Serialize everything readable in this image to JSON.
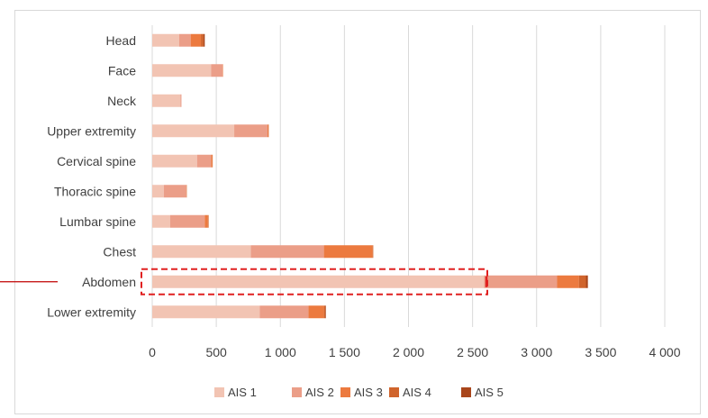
{
  "chart_data": {
    "type": "bar",
    "orientation": "horizontal",
    "stacked": true,
    "categories": [
      "Head",
      "Face",
      "Neck",
      "Upper extremity",
      "Cervical spine",
      "Thoracic spine",
      "Lumbar spine",
      "Chest",
      "Abdomen",
      "Lower extremity"
    ],
    "series": [
      {
        "name": "AIS 1",
        "color": "#f2c4b3",
        "values": [
          210,
          460,
          220,
          640,
          350,
          90,
          140,
          770,
          2590,
          840
        ]
      },
      {
        "name": "AIS 2",
        "color": "#eb9e88",
        "values": [
          90,
          90,
          8,
          260,
          110,
          175,
          270,
          570,
          570,
          380
        ]
      },
      {
        "name": "AIS 3",
        "color": "#ec7a3f",
        "values": [
          80,
          3,
          0,
          8,
          10,
          3,
          25,
          380,
          170,
          120
        ]
      },
      {
        "name": "AIS 4",
        "color": "#d0642c",
        "values": [
          20,
          0,
          0,
          2,
          2,
          2,
          5,
          5,
          55,
          10
        ]
      },
      {
        "name": "AIS 5",
        "color": "#a9461b",
        "values": [
          10,
          0,
          0,
          0,
          0,
          0,
          0,
          0,
          15,
          5
        ]
      }
    ],
    "xlim": [
      0,
      4000
    ],
    "x_ticks": [
      "0",
      "500",
      "1 000",
      "1 500",
      "2 000",
      "2 500",
      "3 000",
      "3 500",
      "4 000"
    ],
    "x_tick_values": [
      0,
      500,
      1000,
      1500,
      2000,
      2500,
      3000,
      3500,
      4000
    ],
    "grid": "vertical",
    "legend_position": "bottom",
    "annotation": {
      "highlight_category": "Abdomen",
      "style": "red dashed box with leader line",
      "color": "#e02020"
    }
  }
}
